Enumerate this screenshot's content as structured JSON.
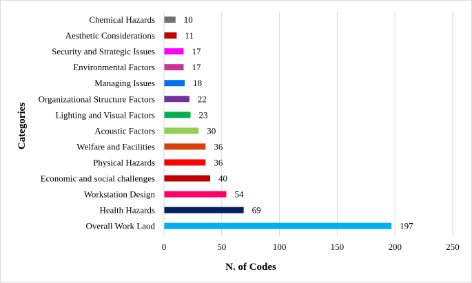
{
  "chart_data": {
    "type": "bar",
    "orientation": "horizontal",
    "xlabel": "N. of Codes",
    "ylabel": "Categories",
    "xlim": [
      0,
      250
    ],
    "xticks": [
      0,
      50,
      100,
      150,
      200,
      250
    ],
    "grid": "vertical",
    "legend": "none",
    "categories": [
      "Chemical Hazards",
      "Aesthetic Considerations",
      "Security and Strategic Issues",
      "Environmental Factors",
      "Managing Issues",
      "Organizational Structure Factors",
      "Lighting and Visual Factors",
      "Acoustic Factors",
      "Welfare and Facilities",
      "Physical Hazards",
      "Economic and social challenges",
      "Workstation Design",
      "Health Hazards",
      "Overall Work Laod"
    ],
    "values": [
      10,
      11,
      17,
      17,
      18,
      22,
      23,
      30,
      36,
      36,
      40,
      54,
      69,
      197
    ],
    "colors": [
      "#767171",
      "#c00000",
      "#ff00ff",
      "#cc3399",
      "#0070f0",
      "#7030a0",
      "#00b050",
      "#92d050",
      "#d9400b",
      "#ff0000",
      "#c00000",
      "#ff0066",
      "#002060",
      "#00b0f0"
    ]
  }
}
